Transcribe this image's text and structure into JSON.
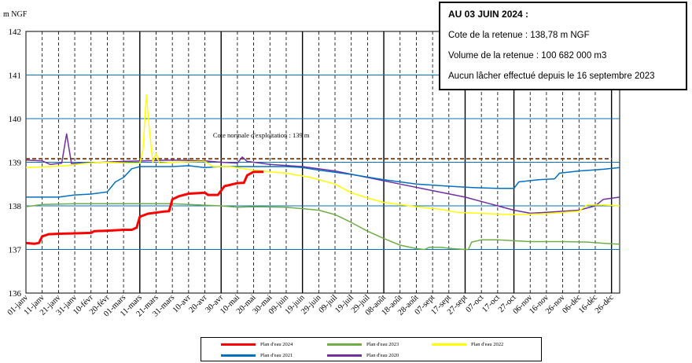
{
  "chart_data": {
    "type": "line",
    "ylabel": "m NGF",
    "ylim": [
      136,
      142
    ],
    "yticks": [
      136,
      137,
      138,
      139,
      140,
      141,
      142
    ],
    "x_tick_labels": [
      "01-janv",
      "11-janv",
      "21-janv",
      "31-janv",
      "10-févr",
      "20-févr",
      "01-mars",
      "11-mars",
      "21-mars",
      "31-mars",
      "10-avr",
      "20-avr",
      "30-avr",
      "10-mai",
      "20-mai",
      "30-mai",
      "09-juin",
      "19-juin",
      "29-juin",
      "09-juil",
      "19-juil",
      "29-juil",
      "08-août",
      "18-août",
      "28-août",
      "07-sept",
      "17-sept",
      "27-sept",
      "07-oct",
      "17-oct",
      "27-oct",
      "06-nov",
      "16-nov",
      "26-nov",
      "06-déc",
      "16-déc",
      "26-déc"
    ],
    "x_range_days": [
      0,
      365
    ],
    "reference_line": {
      "y": 139.08,
      "label": "Cote normale d'exploitation : 139 m",
      "color": "#8B4513"
    },
    "series": [
      {
        "name": "Plan d'eau 2024",
        "color": "#ff0000",
        "width": 3,
        "points": [
          [
            0,
            137.15
          ],
          [
            5,
            137.13
          ],
          [
            8,
            137.15
          ],
          [
            10,
            137.3
          ],
          [
            14,
            137.35
          ],
          [
            20,
            137.36
          ],
          [
            30,
            137.37
          ],
          [
            40,
            137.38
          ],
          [
            42,
            137.42
          ],
          [
            50,
            137.43
          ],
          [
            60,
            137.45
          ],
          [
            65,
            137.45
          ],
          [
            68,
            137.5
          ],
          [
            70,
            137.75
          ],
          [
            75,
            137.82
          ],
          [
            85,
            137.87
          ],
          [
            88,
            137.88
          ],
          [
            90,
            138.15
          ],
          [
            94,
            138.22
          ],
          [
            100,
            138.28
          ],
          [
            110,
            138.3
          ],
          [
            112,
            138.25
          ],
          [
            118,
            138.25
          ],
          [
            122,
            138.45
          ],
          [
            130,
            138.52
          ],
          [
            134,
            138.53
          ],
          [
            136,
            138.7
          ],
          [
            140,
            138.78
          ],
          [
            146,
            138.78
          ]
        ]
      },
      {
        "name": "Plan d'eau 2023",
        "color": "#70ad47",
        "width": 1.5,
        "points": [
          [
            0,
            137.98
          ],
          [
            10,
            138.03
          ],
          [
            30,
            138.05
          ],
          [
            60,
            138.05
          ],
          [
            90,
            138.05
          ],
          [
            100,
            138.03
          ],
          [
            120,
            138.0
          ],
          [
            130,
            137.97
          ],
          [
            140,
            137.98
          ],
          [
            160,
            137.97
          ],
          [
            180,
            137.9
          ],
          [
            190,
            137.8
          ],
          [
            200,
            137.62
          ],
          [
            210,
            137.42
          ],
          [
            220,
            137.25
          ],
          [
            230,
            137.1
          ],
          [
            240,
            137.02
          ],
          [
            245,
            137.0
          ],
          [
            248,
            137.05
          ],
          [
            255,
            137.05
          ],
          [
            262,
            137.02
          ],
          [
            270,
            137.0
          ],
          [
            272,
            137.0
          ],
          [
            274,
            137.17
          ],
          [
            280,
            137.22
          ],
          [
            290,
            137.22
          ],
          [
            310,
            137.18
          ],
          [
            330,
            137.18
          ],
          [
            345,
            137.17
          ],
          [
            360,
            137.13
          ],
          [
            365,
            137.12
          ]
        ]
      },
      {
        "name": "Plan d'eau 2022",
        "color": "#ffff00",
        "width": 1.5,
        "points": [
          [
            0,
            138.88
          ],
          [
            15,
            138.9
          ],
          [
            25,
            138.92
          ],
          [
            35,
            138.97
          ],
          [
            45,
            139.0
          ],
          [
            65,
            138.98
          ],
          [
            70,
            138.98
          ],
          [
            72,
            139.3
          ],
          [
            74,
            140.55
          ],
          [
            76,
            139.7
          ],
          [
            78,
            139.0
          ],
          [
            80,
            139.2
          ],
          [
            82,
            138.98
          ],
          [
            90,
            139.0
          ],
          [
            110,
            139.02
          ],
          [
            115,
            138.9
          ],
          [
            125,
            138.9
          ],
          [
            140,
            138.82
          ],
          [
            150,
            138.78
          ],
          [
            160,
            138.75
          ],
          [
            175,
            138.65
          ],
          [
            190,
            138.5
          ],
          [
            200,
            138.3
          ],
          [
            210,
            138.18
          ],
          [
            220,
            138.08
          ],
          [
            240,
            137.98
          ],
          [
            255,
            137.92
          ],
          [
            265,
            137.85
          ],
          [
            285,
            137.82
          ],
          [
            300,
            137.8
          ],
          [
            320,
            137.82
          ],
          [
            340,
            137.88
          ],
          [
            345,
            138.02
          ],
          [
            355,
            138.02
          ],
          [
            365,
            138.0
          ]
        ]
      },
      {
        "name": "Plan d'eau 2021",
        "color": "#0070c0",
        "width": 1.5,
        "points": [
          [
            0,
            138.2
          ],
          [
            10,
            138.2
          ],
          [
            20,
            138.2
          ],
          [
            30,
            138.25
          ],
          [
            40,
            138.27
          ],
          [
            50,
            138.32
          ],
          [
            55,
            138.55
          ],
          [
            60,
            138.65
          ],
          [
            65,
            138.85
          ],
          [
            70,
            138.9
          ],
          [
            90,
            138.9
          ],
          [
            100,
            138.92
          ],
          [
            110,
            138.88
          ],
          [
            120,
            138.9
          ],
          [
            140,
            138.9
          ],
          [
            160,
            138.9
          ],
          [
            170,
            138.88
          ],
          [
            180,
            138.82
          ],
          [
            200,
            138.72
          ],
          [
            220,
            138.6
          ],
          [
            240,
            138.5
          ],
          [
            260,
            138.45
          ],
          [
            275,
            138.42
          ],
          [
            290,
            138.4
          ],
          [
            300,
            138.4
          ],
          [
            303,
            138.55
          ],
          [
            315,
            138.6
          ],
          [
            325,
            138.62
          ],
          [
            328,
            138.75
          ],
          [
            340,
            138.8
          ],
          [
            355,
            138.84
          ],
          [
            365,
            138.88
          ]
        ]
      },
      {
        "name": "Plan d'eau 2020",
        "color": "#7030a0",
        "width": 1.5,
        "points": [
          [
            0,
            139.05
          ],
          [
            10,
            139.03
          ],
          [
            15,
            138.95
          ],
          [
            22,
            138.98
          ],
          [
            25,
            139.65
          ],
          [
            28,
            138.97
          ],
          [
            35,
            138.98
          ],
          [
            60,
            139.02
          ],
          [
            90,
            139.05
          ],
          [
            110,
            139.03
          ],
          [
            120,
            139.0
          ],
          [
            130,
            138.98
          ],
          [
            133,
            139.12
          ],
          [
            136,
            139.02
          ],
          [
            150,
            138.95
          ],
          [
            170,
            138.9
          ],
          [
            190,
            138.8
          ],
          [
            210,
            138.65
          ],
          [
            230,
            138.5
          ],
          [
            250,
            138.35
          ],
          [
            270,
            138.2
          ],
          [
            285,
            138.05
          ],
          [
            300,
            137.9
          ],
          [
            310,
            137.83
          ],
          [
            320,
            137.85
          ],
          [
            340,
            137.9
          ],
          [
            350,
            138.0
          ],
          [
            355,
            138.15
          ],
          [
            365,
            138.2
          ]
        ]
      }
    ]
  },
  "info": {
    "title": "AU 03 JUIN 2024 :",
    "line1": "Cote de la retenue : 138,78 m NGF",
    "line2": "Volume de la retenue : 100 682 000 m3",
    "line3": "Aucun lâcher effectué depuis le 16 septembre 2023"
  }
}
